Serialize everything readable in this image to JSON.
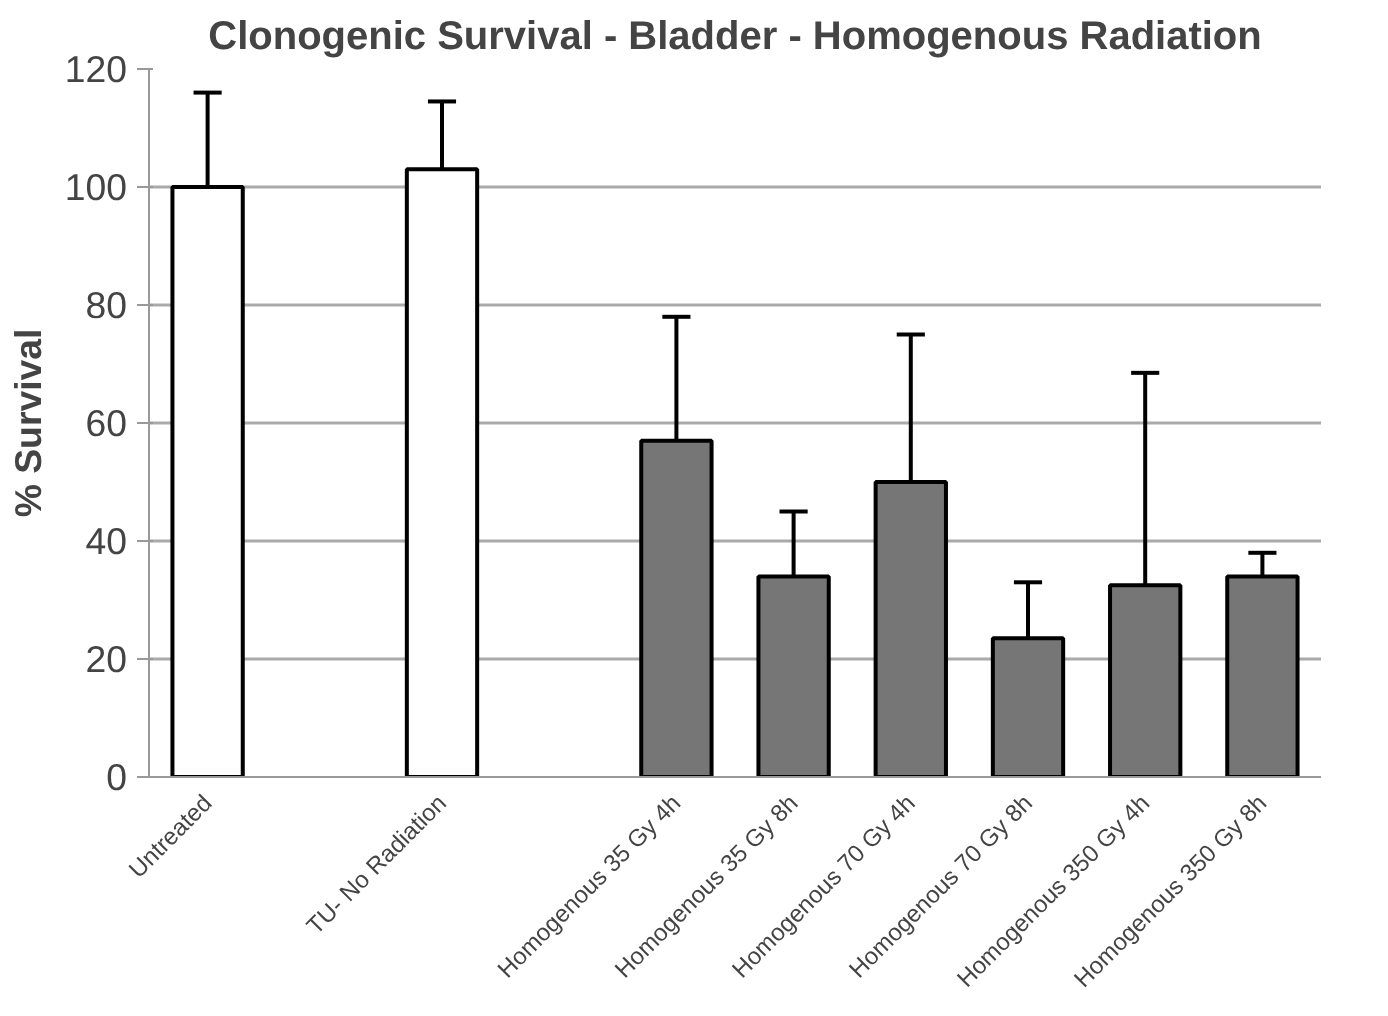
{
  "chart_data": {
    "type": "bar",
    "title": "Clonogenic Survival - Bladder - Homogenous Radiation",
    "ylabel": "% Survival",
    "categories": [
      "Untreated",
      null,
      "TU- No Radiation",
      null,
      "Homogenous 35 Gy 4h",
      "Homogenous 35 Gy 8h",
      "Homogenous 70 Gy 4h",
      "Homogenous 70 Gy 8h",
      "Homogenous 350 Gy 4h",
      "Homogenous 350 Gy 8h"
    ],
    "values": [
      100,
      null,
      103,
      null,
      57,
      34,
      50,
      23.5,
      32.5,
      34
    ],
    "colors": [
      "#ffffff",
      "#ffffff",
      "#ffffff",
      "#ffffff",
      "#767676",
      "#767676",
      "#767676",
      "#767676",
      "#767676",
      "#767676"
    ],
    "errors": [
      [
        100,
        116
      ],
      null,
      [
        103,
        114.5
      ],
      null,
      [
        57,
        78
      ],
      [
        34,
        45
      ],
      [
        50,
        75
      ],
      [
        23.5,
        33
      ],
      [
        32.5,
        68.5
      ],
      [
        34,
        38
      ]
    ],
    "ylim": [
      0,
      120
    ],
    "yticks": [
      0,
      20,
      40,
      60,
      80,
      100,
      120
    ],
    "grid": "y"
  }
}
